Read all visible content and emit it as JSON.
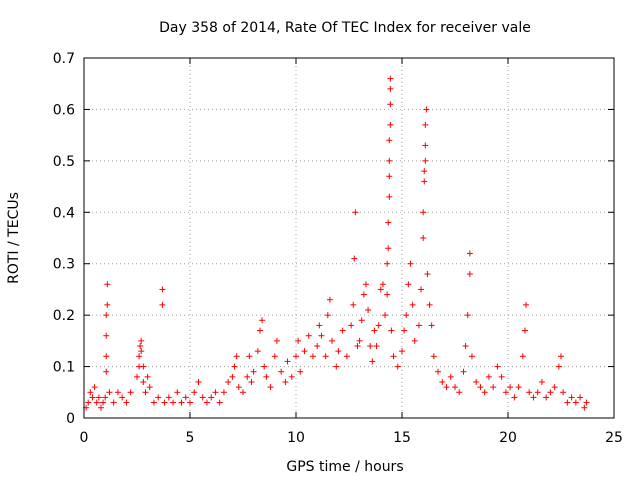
{
  "chart_data": {
    "type": "scatter",
    "title": "Day 358 of 2014, Rate Of TEC Index for receiver vale",
    "xlabel": "GPS time / hours",
    "ylabel": "ROTI / TECUs",
    "xlim": [
      0,
      25
    ],
    "ylim": [
      0,
      0.7
    ],
    "xticks": [
      0,
      5,
      10,
      15,
      20,
      25
    ],
    "yticks": [
      0,
      0.1,
      0.2,
      0.3,
      0.4,
      0.5,
      0.6,
      0.7
    ],
    "grid": true,
    "marker": "+",
    "color": "#ff0000",
    "series": [
      {
        "name": "ROTI",
        "points": [
          [
            0.1,
            0.02
          ],
          [
            0.2,
            0.03
          ],
          [
            0.3,
            0.05
          ],
          [
            0.4,
            0.04
          ],
          [
            0.5,
            0.06
          ],
          [
            0.6,
            0.03
          ],
          [
            0.7,
            0.04
          ],
          [
            0.8,
            0.02
          ],
          [
            0.9,
            0.03
          ],
          [
            1.0,
            0.04
          ],
          [
            1.05,
            0.09
          ],
          [
            1.05,
            0.12
          ],
          [
            1.05,
            0.16
          ],
          [
            1.05,
            0.2
          ],
          [
            1.1,
            0.22
          ],
          [
            1.1,
            0.26
          ],
          [
            1.2,
            0.05
          ],
          [
            1.4,
            0.03
          ],
          [
            1.6,
            0.05
          ],
          [
            1.8,
            0.04
          ],
          [
            2.0,
            0.03
          ],
          [
            2.2,
            0.05
          ],
          [
            2.5,
            0.08
          ],
          [
            2.6,
            0.1
          ],
          [
            2.6,
            0.12
          ],
          [
            2.65,
            0.14
          ],
          [
            2.7,
            0.15
          ],
          [
            2.7,
            0.13
          ],
          [
            2.8,
            0.1
          ],
          [
            2.8,
            0.07
          ],
          [
            2.9,
            0.05
          ],
          [
            3.0,
            0.08
          ],
          [
            3.1,
            0.06
          ],
          [
            3.3,
            0.03
          ],
          [
            3.5,
            0.04
          ],
          [
            3.7,
            0.22
          ],
          [
            3.7,
            0.25
          ],
          [
            3.8,
            0.03
          ],
          [
            4.0,
            0.04
          ],
          [
            4.2,
            0.03
          ],
          [
            4.4,
            0.05
          ],
          [
            4.6,
            0.03
          ],
          [
            4.8,
            0.04
          ],
          [
            5.0,
            0.03
          ],
          [
            5.2,
            0.05
          ],
          [
            5.4,
            0.07
          ],
          [
            5.6,
            0.04
          ],
          [
            5.8,
            0.03
          ],
          [
            6.0,
            0.04
          ],
          [
            6.2,
            0.05
          ],
          [
            6.4,
            0.03
          ],
          [
            6.6,
            0.05
          ],
          [
            6.8,
            0.07
          ],
          [
            7.0,
            0.08
          ],
          [
            7.1,
            0.1
          ],
          [
            7.2,
            0.12
          ],
          [
            7.3,
            0.06
          ],
          [
            7.5,
            0.05
          ],
          [
            7.7,
            0.08
          ],
          [
            7.8,
            0.12
          ],
          [
            7.9,
            0.07
          ],
          [
            8.0,
            0.09
          ],
          [
            8.2,
            0.13
          ],
          [
            8.3,
            0.17
          ],
          [
            8.4,
            0.19
          ],
          [
            8.5,
            0.1
          ],
          [
            8.6,
            0.08
          ],
          [
            8.8,
            0.06
          ],
          [
            9.0,
            0.12
          ],
          [
            9.1,
            0.15
          ],
          [
            9.3,
            0.09
          ],
          [
            9.5,
            0.07
          ],
          [
            9.6,
            0.11
          ],
          [
            9.8,
            0.08
          ],
          [
            10.0,
            0.12
          ],
          [
            10.1,
            0.15
          ],
          [
            10.2,
            0.09
          ],
          [
            10.4,
            0.13
          ],
          [
            10.6,
            0.16
          ],
          [
            10.8,
            0.12
          ],
          [
            11.0,
            0.14
          ],
          [
            11.1,
            0.18
          ],
          [
            11.2,
            0.16
          ],
          [
            11.4,
            0.12
          ],
          [
            11.5,
            0.2
          ],
          [
            11.6,
            0.23
          ],
          [
            11.7,
            0.15
          ],
          [
            11.9,
            0.1
          ],
          [
            12.0,
            0.13
          ],
          [
            12.2,
            0.17
          ],
          [
            12.4,
            0.12
          ],
          [
            12.6,
            0.18
          ],
          [
            12.7,
            0.22
          ],
          [
            12.75,
            0.31
          ],
          [
            12.8,
            0.4
          ],
          [
            12.9,
            0.14
          ],
          [
            13.0,
            0.15
          ],
          [
            13.1,
            0.19
          ],
          [
            13.2,
            0.24
          ],
          [
            13.3,
            0.26
          ],
          [
            13.4,
            0.21
          ],
          [
            13.5,
            0.14
          ],
          [
            13.6,
            0.11
          ],
          [
            13.7,
            0.17
          ],
          [
            13.8,
            0.14
          ],
          [
            13.9,
            0.18
          ],
          [
            14.0,
            0.25
          ],
          [
            14.1,
            0.26
          ],
          [
            14.2,
            0.2
          ],
          [
            14.3,
            0.24
          ],
          [
            14.3,
            0.3
          ],
          [
            14.35,
            0.33
          ],
          [
            14.35,
            0.38
          ],
          [
            14.4,
            0.43
          ],
          [
            14.4,
            0.47
          ],
          [
            14.4,
            0.5
          ],
          [
            14.4,
            0.54
          ],
          [
            14.45,
            0.57
          ],
          [
            14.45,
            0.61
          ],
          [
            14.45,
            0.64
          ],
          [
            14.45,
            0.66
          ],
          [
            14.5,
            0.17
          ],
          [
            14.6,
            0.12
          ],
          [
            14.8,
            0.1
          ],
          [
            15.0,
            0.13
          ],
          [
            15.1,
            0.17
          ],
          [
            15.2,
            0.2
          ],
          [
            15.3,
            0.26
          ],
          [
            15.4,
            0.3
          ],
          [
            15.5,
            0.22
          ],
          [
            15.6,
            0.15
          ],
          [
            15.8,
            0.18
          ],
          [
            15.9,
            0.25
          ],
          [
            16.0,
            0.35
          ],
          [
            16.0,
            0.4
          ],
          [
            16.05,
            0.46
          ],
          [
            16.05,
            0.48
          ],
          [
            16.1,
            0.5
          ],
          [
            16.1,
            0.53
          ],
          [
            16.1,
            0.57
          ],
          [
            16.15,
            0.6
          ],
          [
            16.2,
            0.28
          ],
          [
            16.3,
            0.22
          ],
          [
            16.4,
            0.18
          ],
          [
            16.5,
            0.12
          ],
          [
            16.7,
            0.09
          ],
          [
            16.9,
            0.07
          ],
          [
            17.1,
            0.06
          ],
          [
            17.3,
            0.08
          ],
          [
            17.5,
            0.06
          ],
          [
            17.7,
            0.05
          ],
          [
            17.9,
            0.09
          ],
          [
            18.0,
            0.14
          ],
          [
            18.1,
            0.2
          ],
          [
            18.2,
            0.28
          ],
          [
            18.2,
            0.32
          ],
          [
            18.3,
            0.12
          ],
          [
            18.5,
            0.07
          ],
          [
            18.7,
            0.06
          ],
          [
            18.9,
            0.05
          ],
          [
            19.1,
            0.08
          ],
          [
            19.3,
            0.06
          ],
          [
            19.5,
            0.1
          ],
          [
            19.7,
            0.08
          ],
          [
            19.9,
            0.05
          ],
          [
            20.1,
            0.06
          ],
          [
            20.3,
            0.04
          ],
          [
            20.5,
            0.06
          ],
          [
            20.7,
            0.12
          ],
          [
            20.8,
            0.17
          ],
          [
            20.85,
            0.22
          ],
          [
            21.0,
            0.05
          ],
          [
            21.2,
            0.04
          ],
          [
            21.4,
            0.05
          ],
          [
            21.6,
            0.07
          ],
          [
            21.8,
            0.04
          ],
          [
            22.0,
            0.05
          ],
          [
            22.2,
            0.06
          ],
          [
            22.4,
            0.1
          ],
          [
            22.5,
            0.12
          ],
          [
            22.6,
            0.05
          ],
          [
            22.8,
            0.03
          ],
          [
            23.0,
            0.04
          ],
          [
            23.2,
            0.03
          ],
          [
            23.4,
            0.04
          ],
          [
            23.6,
            0.02
          ],
          [
            23.7,
            0.03
          ]
        ]
      }
    ]
  }
}
